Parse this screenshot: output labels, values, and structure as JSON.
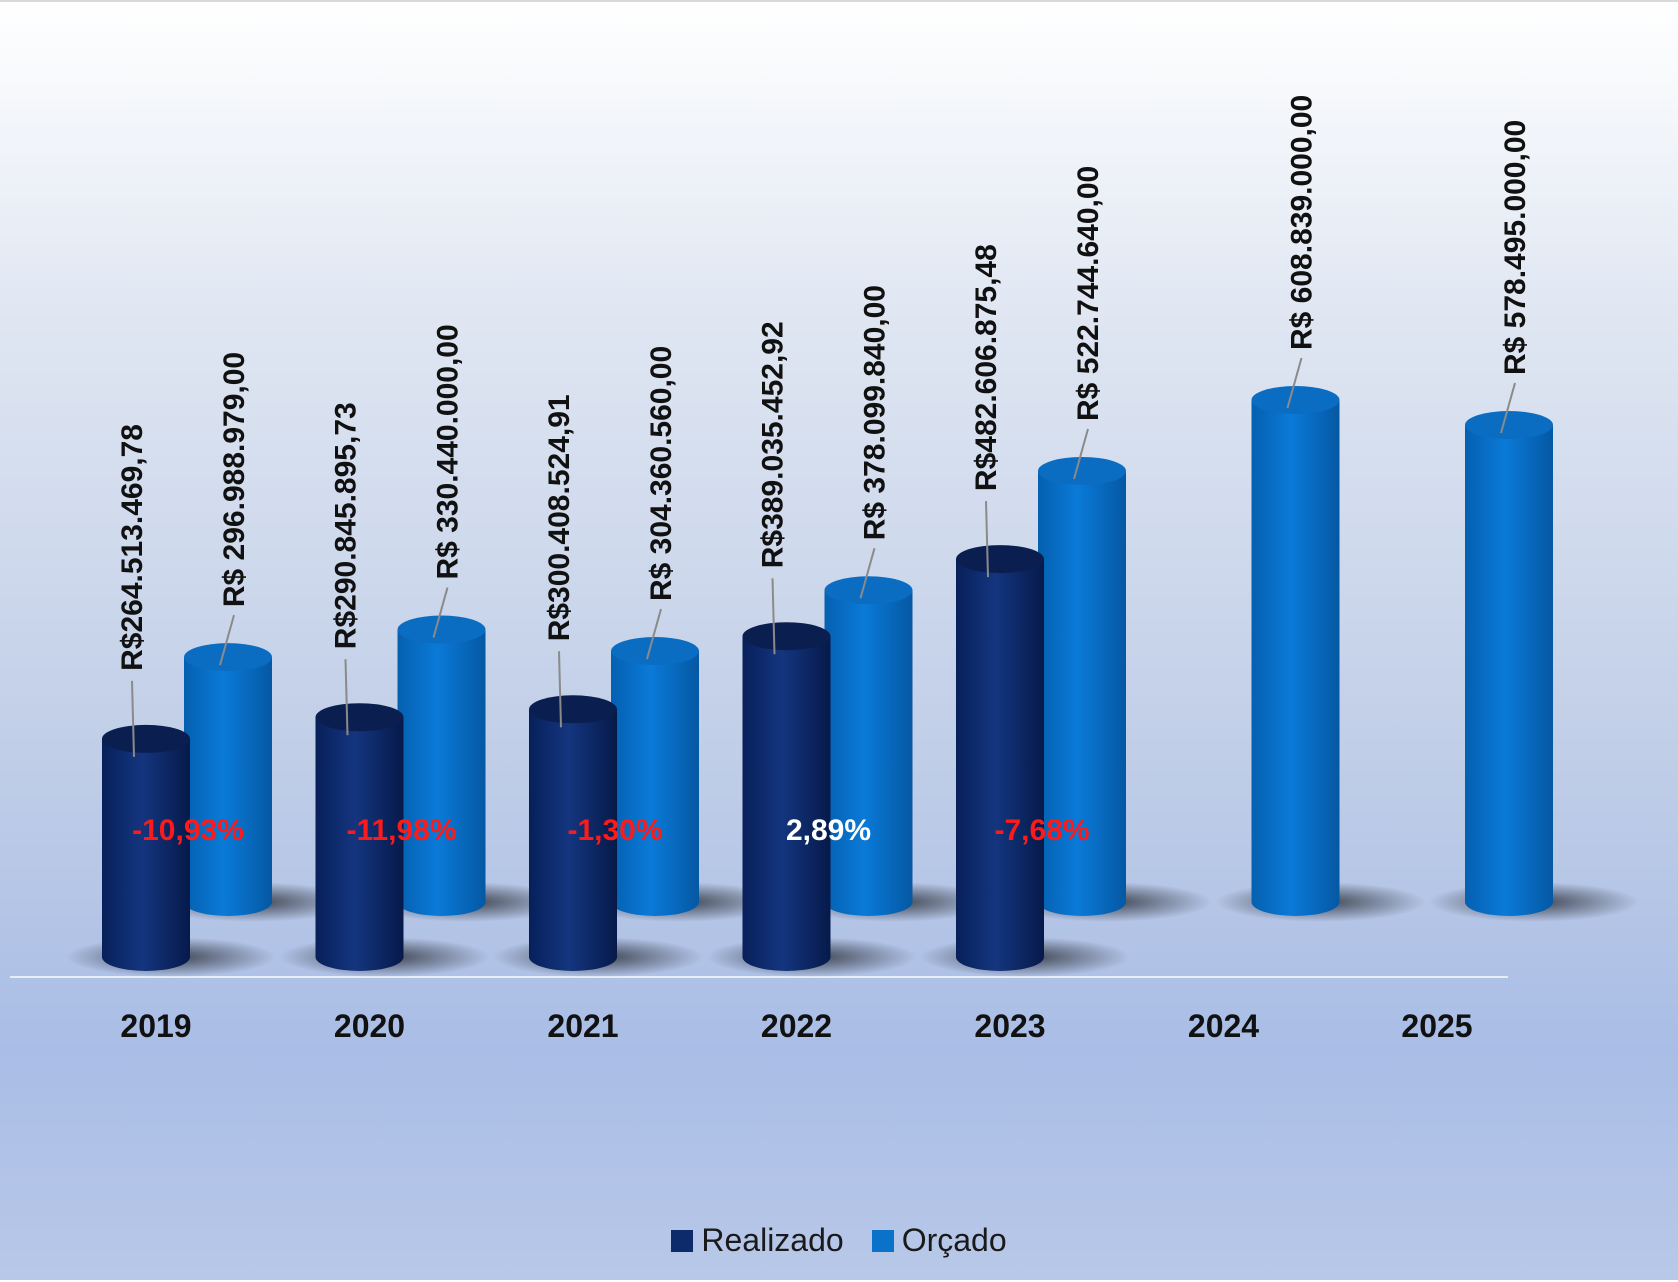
{
  "chart_data": {
    "type": "bar",
    "categories": [
      "2019",
      "2020",
      "2021",
      "2022",
      "2023",
      "2024",
      "2025"
    ],
    "series": [
      {
        "name": "Realizado",
        "color": "#0d2a6b",
        "values": [
          264513469.78,
          290845895.73,
          300408524.91,
          389035452.92,
          482606875.48,
          null,
          null
        ],
        "labels": [
          "R$264.513.469,78",
          "R$290.845.895,73",
          "R$300.408.524,91",
          "R$389.035.452,92",
          "R$482.606.875,48",
          "",
          ""
        ]
      },
      {
        "name": "Orçado",
        "color": "#0a72c9",
        "values": [
          296988979.0,
          330440000.0,
          304360560.0,
          378099840.0,
          522744640.0,
          608839000.0,
          578495000.0
        ],
        "labels": [
          "R$ 296.988.979,00",
          "R$ 330.440.000,00",
          "R$ 304.360.560,00",
          "R$ 378.099.840,00",
          "R$ 522.744.640,00",
          "R$ 608.839.000,00",
          "R$ 578.495.000,00"
        ]
      }
    ],
    "variations": [
      {
        "text": "-10,93%",
        "color": "#ff1a1a"
      },
      {
        "text": "-11,98%",
        "color": "#ff1a1a"
      },
      {
        "text": "-1,30%",
        "color": "#ff1a1a"
      },
      {
        "text": "2,89%",
        "color": "#ffffff"
      },
      {
        "text": "-7,68%",
        "color": "#ff1a1a"
      }
    ],
    "legend_position": "bottom-center",
    "grid": false,
    "title": "",
    "xlabel": "",
    "ylabel": ""
  }
}
